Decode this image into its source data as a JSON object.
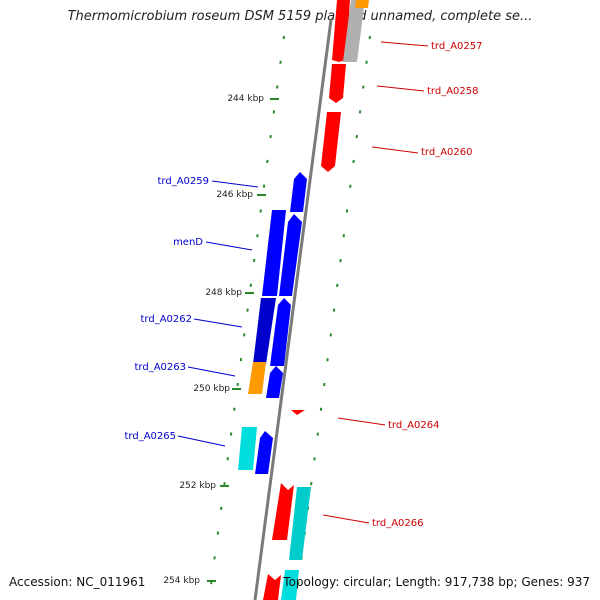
{
  "title": "Thermomicrobium roseum DSM 5159 plasmid unnamed, complete se...",
  "accession": "Accession: NC_011961",
  "summary": "Topology: circular; Length: 917,738 bp; Genes: 937",
  "colors": {
    "forward_gene": "#ff0000",
    "reverse_gene": "#0000ff",
    "rrna_orange": "#ff9900",
    "cyan_feature": "#00dddd",
    "grey_feature": "#b0b0b0",
    "backbone": "#7a7a7a",
    "tick_green": "#2a8a2a",
    "label_blue": "#0000cc",
    "label_red": "#cc0000"
  },
  "scale_labels": [
    "244 kbp",
    "246 kbp",
    "248 kbp",
    "250 kbp",
    "252 kbp",
    "254 kbp"
  ],
  "gene_labels_left": [
    "trd_A0259",
    "menD",
    "trd_A0262",
    "trd_A0263",
    "trd_A0265"
  ],
  "gene_labels_right": [
    "trd_A0257",
    "trd_A0258",
    "trd_A0260",
    "trd_A0264",
    "trd_A0266"
  ]
}
